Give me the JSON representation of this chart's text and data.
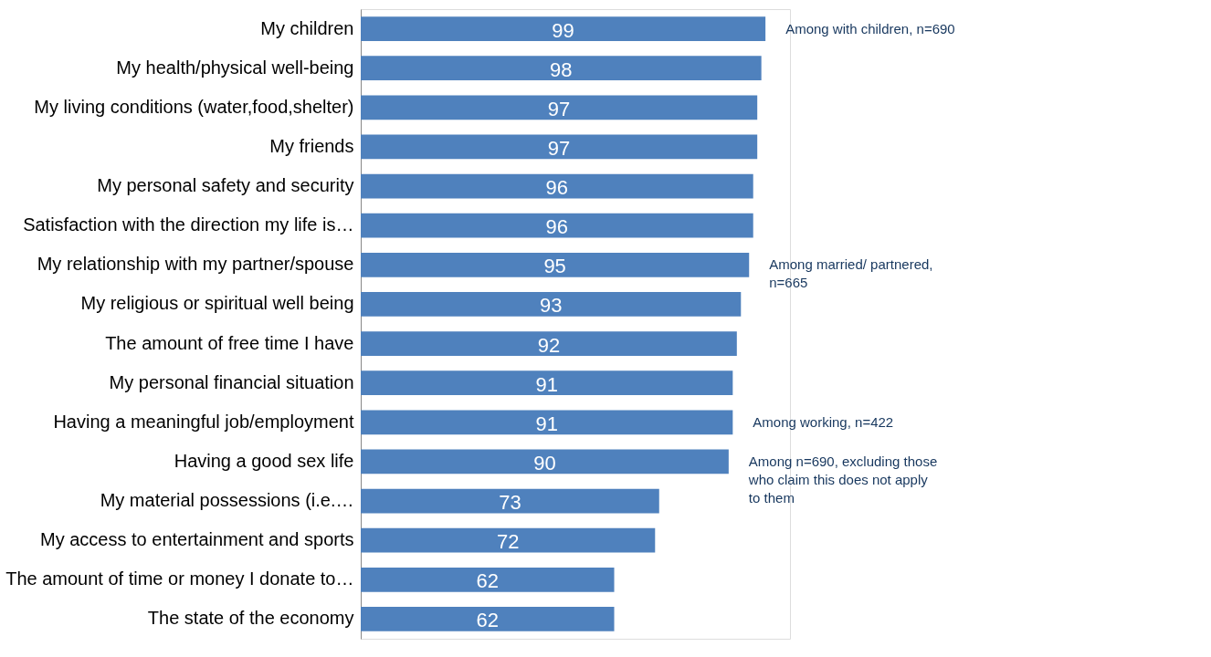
{
  "chart_data": {
    "type": "bar",
    "orientation": "horizontal",
    "categories": [
      "My children",
      "My health/physical well-being",
      "My living conditions (water,food,shelter)",
      "My friends",
      "My personal safety and security",
      "Satisfaction with the direction my life is…",
      "My relationship with my partner/spouse",
      "My religious or spiritual well being",
      "The amount of free time I have",
      "My personal financial situation",
      "Having a meaningful job/employment",
      "Having a good sex life",
      "My material possessions (i.e.…",
      "My access to entertainment and sports",
      "The amount of time or money I donate to…",
      "The state of the economy"
    ],
    "values": [
      99,
      98,
      97,
      97,
      96,
      96,
      95,
      93,
      92,
      91,
      91,
      90,
      73,
      72,
      62,
      62
    ],
    "color": "#4f81bd",
    "xlim": [
      0,
      105
    ],
    "data_labels": true,
    "tick_labels": "y",
    "annotations": [
      {
        "text": "Among with children, n=690",
        "x": 99,
        "y": "My children"
      },
      {
        "text": "Among married/ partnered, n=665",
        "x": 95,
        "y": "My relationship with my partner/spouse"
      },
      {
        "text": "Among working, n=422",
        "x": 91,
        "y": "Having a meaningful job/employment"
      },
      {
        "text": "Among n=690, excluding those who claim this does not apply to them",
        "x": 90,
        "y": "Having a good sex life"
      }
    ]
  }
}
